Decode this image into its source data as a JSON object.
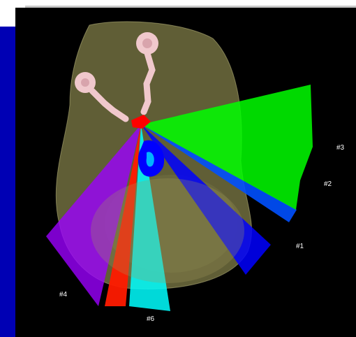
{
  "colors": {
    "frame_blue": "#0000b4",
    "background": "#000000",
    "anatomy": "#a09c5a",
    "beam_3": "#00ff00",
    "beam_2": "#0050ff",
    "beam_1": "#0000ff",
    "beam_4": "#9b00ff",
    "beam_red": "#ff1a00",
    "beam_6": "#00ffff",
    "eyes": "#f0c8cc"
  },
  "beam_labels": {
    "beam_3": "#3",
    "beam_2": "#2",
    "beam_1": "#1",
    "beam_4": "#4",
    "beam_6": "#6"
  }
}
